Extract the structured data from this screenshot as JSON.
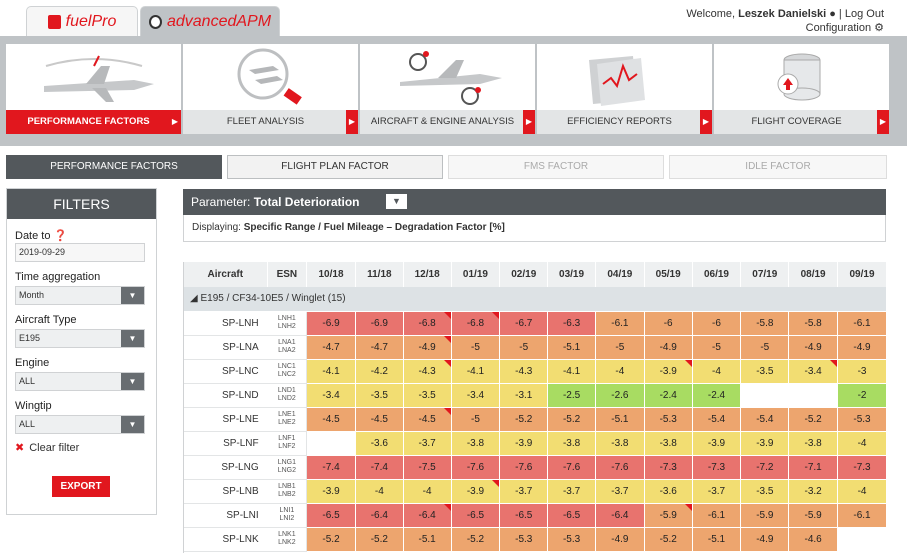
{
  "apps": [
    {
      "name": "fuelPro",
      "label": "fuelPro"
    },
    {
      "name": "advancedAPM",
      "label": "advancedAPM"
    }
  ],
  "user": {
    "welcome": "Welcome,",
    "name": "Leszek Danielski",
    "logout": "Log Out",
    "config": "Configuration"
  },
  "nav": [
    {
      "label": "PERFORMANCE FACTORS",
      "active": true
    },
    {
      "label": "FLEET ANALYSIS",
      "active": false
    },
    {
      "label": "AIRCRAFT & ENGINE ANALYSIS",
      "active": false
    },
    {
      "label": "EFFICIENCY REPORTS",
      "active": false
    },
    {
      "label": "FLIGHT COVERAGE",
      "active": false
    }
  ],
  "subtabs": [
    {
      "label": "PERFORMANCE FACTORS",
      "state": "active"
    },
    {
      "label": "FLIGHT PLAN FACTOR",
      "state": "normal"
    },
    {
      "label": "FMS FACTOR",
      "state": "disabled"
    },
    {
      "label": "IDLE FACTOR",
      "state": "disabled"
    }
  ],
  "filters": {
    "title": "FILTERS",
    "date_label": "Date to",
    "date_value": "2019-09-29",
    "agg_label": "Time aggregation",
    "agg_value": "Month",
    "type_label": "Aircraft Type",
    "type_value": "E195",
    "engine_label": "Engine",
    "engine_value": "ALL",
    "wingtip_label": "Wingtip",
    "wingtip_value": "ALL",
    "clear": "Clear filter",
    "export": "EXPORT"
  },
  "parameter": {
    "label": "Parameter:",
    "value": "Total Deterioration"
  },
  "displaying": {
    "label": "Displaying:",
    "value": "Specific Range / Fuel Mileage – Degradation Factor [%]"
  },
  "table": {
    "col_aircraft": "Aircraft",
    "col_esn": "ESN",
    "months": [
      "10/18",
      "11/18",
      "12/18",
      "01/19",
      "02/19",
      "03/19",
      "04/19",
      "05/19",
      "06/19",
      "07/19",
      "08/19",
      "09/19"
    ],
    "group": "E195 / CF34-10E5 / Winglet (15)",
    "rows": [
      {
        "ac": "SP-LNH",
        "esn1": "LNH1",
        "esn2": "LNH2",
        "v": [
          "-6.9",
          "-6.9",
          "-6.8",
          "-6.8",
          "-6.7",
          "-6.3",
          "-6.1",
          "-6",
          "-6",
          "-5.8",
          "-5.8",
          "-6.1"
        ],
        "flags": [
          2,
          3
        ]
      },
      {
        "ac": "SP-LNA",
        "esn1": "LNA1",
        "esn2": "LNA2",
        "v": [
          "-4.7",
          "-4.7",
          "-4.9",
          "-5",
          "-5",
          "-5.1",
          "-5",
          "-4.9",
          "-5",
          "-5",
          "-4.9",
          "-4.9"
        ],
        "flags": [
          2
        ]
      },
      {
        "ac": "SP-LNC",
        "esn1": "LNC1",
        "esn2": "LNC2",
        "v": [
          "-4.1",
          "-4.2",
          "-4.3",
          "-4.1",
          "-4.3",
          "-4.1",
          "-4",
          "-3.9",
          "-4",
          "-3.5",
          "-3.4",
          "-3"
        ],
        "flags": [
          2,
          7,
          10
        ]
      },
      {
        "ac": "SP-LND",
        "esn1": "LND1",
        "esn2": "LND2",
        "v": [
          "-3.4",
          "-3.5",
          "-3.5",
          "-3.4",
          "-3.1",
          "-2.5",
          "-2.6",
          "-2.4",
          "-2.4",
          "",
          "",
          "-2"
        ],
        "flags": []
      },
      {
        "ac": "SP-LNE",
        "esn1": "LNE1",
        "esn2": "LNE2",
        "v": [
          "-4.5",
          "-4.5",
          "-4.5",
          "-5",
          "-5.2",
          "-5.2",
          "-5.1",
          "-5.3",
          "-5.4",
          "-5.4",
          "-5.2",
          "-5.3"
        ],
        "flags": [
          2
        ]
      },
      {
        "ac": "SP-LNF",
        "esn1": "LNF1",
        "esn2": "LNF2",
        "v": [
          "",
          "-3.6",
          "-3.7",
          "-3.8",
          "-3.9",
          "-3.8",
          "-3.8",
          "-3.8",
          "-3.9",
          "-3.9",
          "-3.8",
          "-4"
        ],
        "flags": []
      },
      {
        "ac": "SP-LNG",
        "esn1": "LNG1",
        "esn2": "LNG2",
        "v": [
          "-7.4",
          "-7.4",
          "-7.5",
          "-7.6",
          "-7.6",
          "-7.6",
          "-7.6",
          "-7.3",
          "-7.3",
          "-7.2",
          "-7.1",
          "-7.3"
        ],
        "flags": []
      },
      {
        "ac": "SP-LNB",
        "esn1": "LNB1",
        "esn2": "LNB2",
        "v": [
          "-3.9",
          "-4",
          "-4",
          "-3.9",
          "-3.7",
          "-3.7",
          "-3.7",
          "-3.6",
          "-3.7",
          "-3.5",
          "-3.2",
          "-4"
        ],
        "flags": [
          3
        ]
      },
      {
        "ac": "SP-LNI",
        "esn1": "LNI1",
        "esn2": "LNI2",
        "v": [
          "-6.5",
          "-6.4",
          "-6.4",
          "-6.5",
          "-6.5",
          "-6.5",
          "-6.4",
          "-5.9",
          "-6.1",
          "-5.9",
          "-5.9",
          "-6.1"
        ],
        "flags": [
          2,
          7
        ]
      },
      {
        "ac": "SP-LNK",
        "esn1": "LNK1",
        "esn2": "LNK2",
        "v": [
          "-5.2",
          "-5.2",
          "-5.1",
          "-5.2",
          "-5.3",
          "-5.3",
          "-4.9",
          "-5.2",
          "-5.1",
          "-4.9",
          "-4.6",
          ""
        ],
        "flags": []
      }
    ]
  },
  "colors": {
    "accent": "#e1171e",
    "dark": "#53585c",
    "red": "#e8736e",
    "orange": "#eda56e",
    "yellow": "#f2dd72",
    "green": "#a8dc62"
  }
}
